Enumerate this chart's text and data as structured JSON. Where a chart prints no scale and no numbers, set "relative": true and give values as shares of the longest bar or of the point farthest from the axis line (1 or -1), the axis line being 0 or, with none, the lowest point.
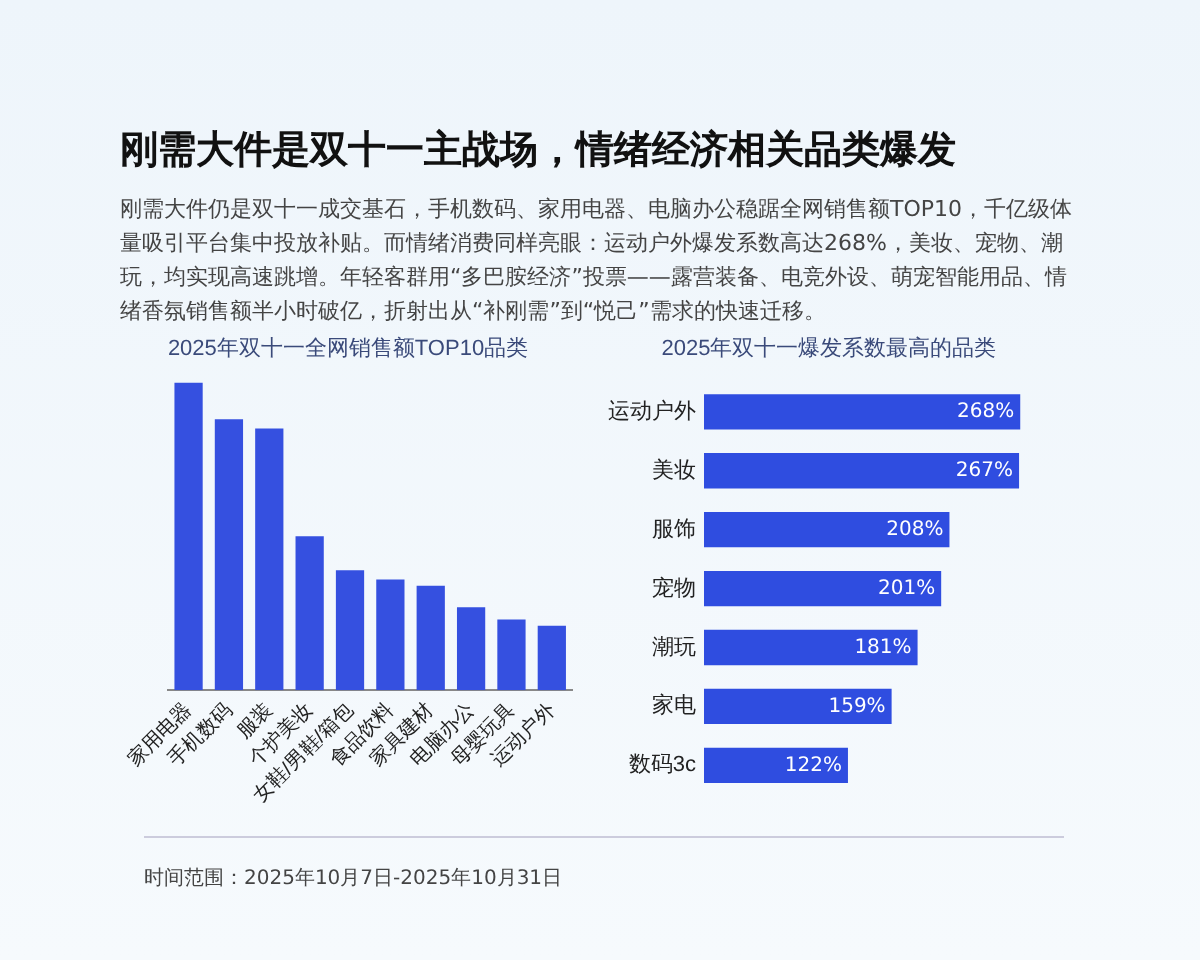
{
  "chart_data": [
    {
      "type": "other",
      "title": "刚需大件是双十一主战场，情绪经济相关品类爆发",
      "subtitle": "刚需大件仍是双十一成交基石，手机数码、家用电器、电脑办公稳踞全网销售额TOP10，千亿级体量吸引平台集中投放补贴。而情绪消费同样亮眼：运动户外爆发系数高达268%，美妆、宠物、潮玩，均实现高速跳增。年轻客群用“多巴胺经济”投票——露营装备、电竞外设、萌宠智能用品、情绪香氛销售额半小时破亿，折射出从“补刚需”到“悦己”需求的快速迁移。",
      "annotations": [
        "时间范围：2025年10月7日-2025年10月31日"
      ]
    },
    {
      "type": "bar",
      "title": "2025年双十一全网销售额TOP10品类",
      "relative": true,
      "categories": [
        "家用电器",
        "手机数码",
        "服装",
        "个护美妆",
        "女鞋/男鞋/箱包",
        "食品饮料",
        "家具建材",
        "电脑办公",
        "母婴玩具",
        "运动户外"
      ],
      "values": [
        1,
        0.88,
        0.85,
        0.5,
        0.39,
        0.36,
        0.34,
        0.27,
        0.23,
        0.21
      ],
      "color": "#3550e0",
      "grid": false,
      "tick_labels": "x"
    },
    {
      "type": "bar",
      "orientation": "horizontal",
      "title": "2025年双十一爆发系数最高的品类",
      "categories": [
        "运动户外",
        "美妆",
        "服饰",
        "宠物",
        "潮玩",
        "家电",
        "数码3c"
      ],
      "values": [
        268,
        267,
        208,
        201,
        181,
        159,
        122
      ],
      "value_labels": [
        "268%",
        "267%",
        "208%",
        "201%",
        "181%",
        "159%",
        "122%"
      ],
      "color": "#2f4de0",
      "grid": false,
      "tick_labels": "y"
    }
  ]
}
